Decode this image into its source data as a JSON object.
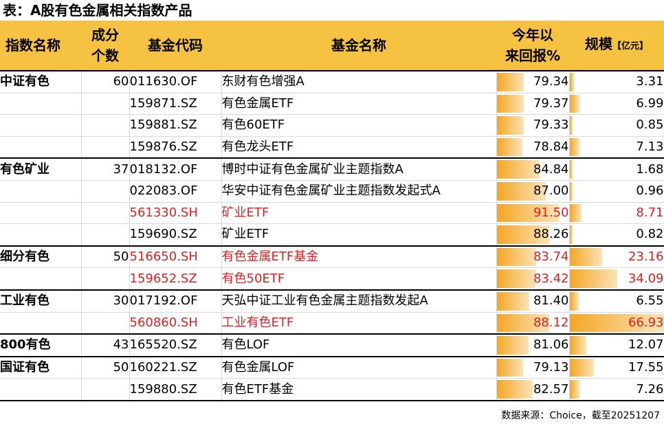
{
  "title": "表：A股有色金属相关指数产品",
  "headers": {
    "index_name": "指数名称",
    "constituents_line1": "成分",
    "constituents_line2": "个数",
    "fund_code": "基金代码",
    "fund_name": "基金名称",
    "ytd_line1": "今年以",
    "ytd_line2": "来回报%",
    "scale": "规模",
    "scale_unit": "【亿元】"
  },
  "rows": [
    {
      "index": "中证有色",
      "count": "60",
      "code": "011630.OF",
      "name": "东财有色增强A",
      "ret": "79.34",
      "scale": "3.31",
      "hl": false
    },
    {
      "index": "",
      "count": "",
      "code": "159871.SZ",
      "name": "有色金属ETF",
      "ret": "79.37",
      "scale": "6.99",
      "hl": false
    },
    {
      "index": "",
      "count": "",
      "code": "159881.SZ",
      "name": "有色60ETF",
      "ret": "79.33",
      "scale": "0.85",
      "hl": false
    },
    {
      "index": "",
      "count": "",
      "code": "159876.SZ",
      "name": "有色龙头ETF",
      "ret": "78.84",
      "scale": "7.13",
      "hl": false
    },
    {
      "index": "有色矿业",
      "count": "37",
      "code": "018132.OF",
      "name": "博时中证有色金属矿业主题指数A",
      "ret": "84.84",
      "scale": "1.68",
      "hl": false
    },
    {
      "index": "",
      "count": "",
      "code": "022083.OF",
      "name": "华安中证有色金属矿业主题指数发起式A",
      "ret": "87.00",
      "scale": "0.96",
      "hl": false
    },
    {
      "index": "",
      "count": "",
      "code": "561330.SH",
      "name": "矿业ETF",
      "ret": "91.50",
      "scale": "8.71",
      "hl": true
    },
    {
      "index": "",
      "count": "",
      "code": "159690.SZ",
      "name": "矿业ETF",
      "ret": "88.26",
      "scale": "0.82",
      "hl": false
    },
    {
      "index": "细分有色",
      "count": "50",
      "code": "516650.SH",
      "name": "有色金属ETF基金",
      "ret": "83.74",
      "scale": "23.16",
      "hl": true
    },
    {
      "index": "",
      "count": "",
      "code": "159652.SZ",
      "name": "有色50ETF",
      "ret": "83.42",
      "scale": "34.09",
      "hl": true
    },
    {
      "index": "工业有色",
      "count": "30",
      "code": "017192.OF",
      "name": "天弘中证工业有色金属主题指数发起A",
      "ret": "81.40",
      "scale": "6.55",
      "hl": false
    },
    {
      "index": "",
      "count": "",
      "code": "560860.SH",
      "name": "工业有色ETF",
      "ret": "88.12",
      "scale": "66.93",
      "hl": true
    },
    {
      "index": "800有色",
      "count": "43",
      "code": "165520.SZ",
      "name": "有色LOF",
      "ret": "81.06",
      "scale": "12.07",
      "hl": false
    },
    {
      "index": "国证有色",
      "count": "50",
      "code": "160221.SZ",
      "name": "有色金属LOF",
      "ret": "79.13",
      "scale": "17.55",
      "hl": false
    },
    {
      "index": "",
      "count": "",
      "code": "159880.SZ",
      "name": "有色ETF基金",
      "ret": "82.57",
      "scale": "7.26",
      "hl": false
    }
  ],
  "source": "数据来源：Choice，截至20251207",
  "colors": {
    "header_bg": "#f5c242",
    "bar": "#f5a623",
    "highlight_text": "#e02020"
  }
}
